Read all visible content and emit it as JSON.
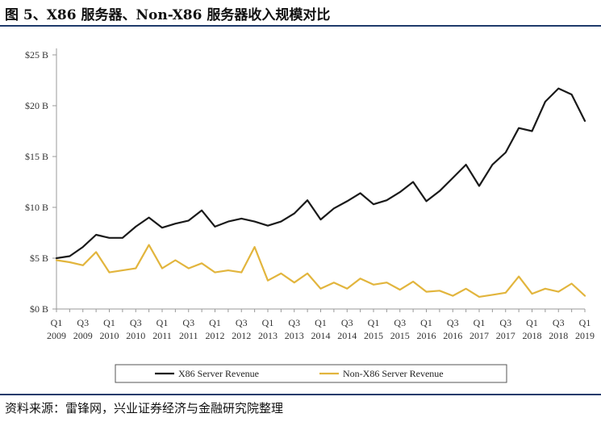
{
  "figure_title": "图 5、X86 服务器、Non-X86 服务器收入规模对比",
  "source_note": "资料来源：雷锋网，兴业证券经济与金融研究院整理",
  "colors": {
    "x86": "#1a1a1a",
    "non_x86": "#e2b53d",
    "axis": "#999999",
    "rule": "#1f3b6b"
  },
  "chart_data": {
    "type": "line",
    "ylim": [
      0,
      25
    ],
    "yticks": [
      0,
      5,
      10,
      15,
      20,
      25
    ],
    "ytick_labels": [
      "$0 B",
      "$5 B",
      "$10 B",
      "$15 B",
      "$20 B",
      "$25 B"
    ],
    "grid": false,
    "legend_position": "bottom",
    "categories": [
      "Q1 2009",
      "Q2 2009",
      "Q3 2009",
      "Q4 2009",
      "Q1 2010",
      "Q2 2010",
      "Q3 2010",
      "Q4 2010",
      "Q1 2011",
      "Q2 2011",
      "Q3 2011",
      "Q4 2011",
      "Q1 2012",
      "Q2 2012",
      "Q3 2012",
      "Q4 2012",
      "Q1 2013",
      "Q2 2013",
      "Q3 2013",
      "Q4 2013",
      "Q1 2014",
      "Q2 2014",
      "Q3 2014",
      "Q4 2014",
      "Q1 2015",
      "Q2 2015",
      "Q3 2015",
      "Q4 2015",
      "Q1 2016",
      "Q2 2016",
      "Q3 2016",
      "Q4 2016",
      "Q1 2017",
      "Q2 2017",
      "Q3 2017",
      "Q4 2017",
      "Q1 2018",
      "Q2 2018",
      "Q3 2018",
      "Q4 2018",
      "Q1 2019"
    ],
    "xtick_labels": [
      [
        "Q1",
        "2009"
      ],
      [
        "Q3",
        "2009"
      ],
      [
        "Q1",
        "2010"
      ],
      [
        "Q3",
        "2010"
      ],
      [
        "Q1",
        "2011"
      ],
      [
        "Q3",
        "2011"
      ],
      [
        "Q1",
        "2012"
      ],
      [
        "Q3",
        "2012"
      ],
      [
        "Q1",
        "2013"
      ],
      [
        "Q3",
        "2013"
      ],
      [
        "Q1",
        "2014"
      ],
      [
        "Q3",
        "2014"
      ],
      [
        "Q1",
        "2015"
      ],
      [
        "Q3",
        "2015"
      ],
      [
        "Q1",
        "2016"
      ],
      [
        "Q3",
        "2016"
      ],
      [
        "Q1",
        "2017"
      ],
      [
        "Q3",
        "2017"
      ],
      [
        "Q1",
        "2018"
      ],
      [
        "Q3",
        "2018"
      ],
      [
        "Q1",
        "2019"
      ]
    ],
    "series": [
      {
        "name": "X86 Server Revenue",
        "color": "#1a1a1a",
        "values": [
          5.0,
          5.2,
          6.1,
          7.3,
          7.0,
          7.0,
          8.1,
          9.0,
          8.0,
          8.4,
          8.7,
          9.7,
          8.1,
          8.6,
          8.9,
          8.6,
          8.2,
          8.6,
          9.4,
          10.7,
          8.8,
          9.9,
          10.6,
          11.4,
          10.3,
          10.7,
          11.5,
          12.5,
          10.6,
          11.6,
          12.9,
          14.2,
          12.1,
          14.2,
          15.4,
          17.8,
          17.5,
          20.4,
          21.7,
          21.1,
          18.5
        ]
      },
      {
        "name": "Non-X86 Server Revenue",
        "color": "#e2b53d",
        "values": [
          4.8,
          4.6,
          4.3,
          5.6,
          3.6,
          3.8,
          4.0,
          6.3,
          4.0,
          4.8,
          4.0,
          4.5,
          3.6,
          3.8,
          3.6,
          6.1,
          2.8,
          3.5,
          2.6,
          3.5,
          2.0,
          2.6,
          2.0,
          3.0,
          2.4,
          2.6,
          1.9,
          2.7,
          1.7,
          1.8,
          1.3,
          2.0,
          1.2,
          1.4,
          1.6,
          3.2,
          1.5,
          2.0,
          1.7,
          2.5,
          1.3
        ]
      }
    ]
  }
}
